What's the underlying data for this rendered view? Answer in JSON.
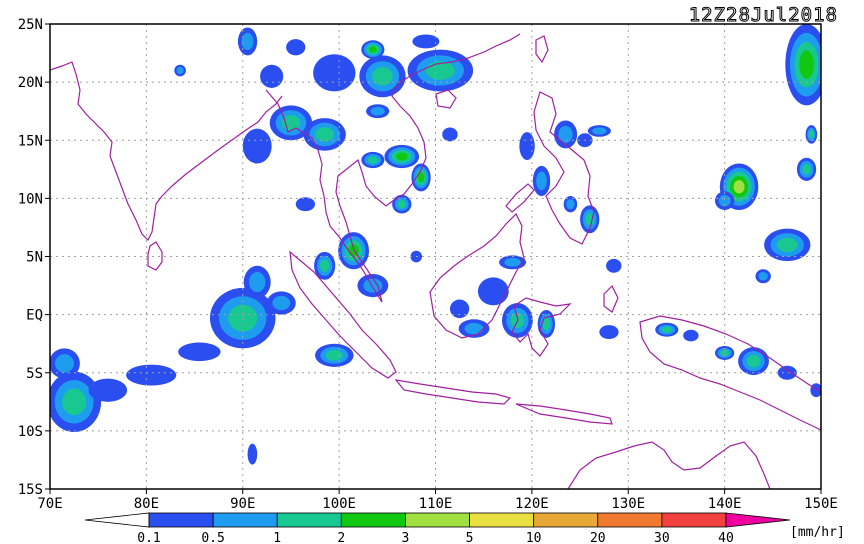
{
  "title": "12Z28Jul2018",
  "units": "[mm/hr]",
  "map": {
    "lon_range": [
      70,
      150
    ],
    "lat_range": [
      -15,
      25
    ],
    "lat_ticks": [
      {
        "value": 25,
        "label": "25N"
      },
      {
        "value": 20,
        "label": "20N"
      },
      {
        "value": 15,
        "label": "15N"
      },
      {
        "value": 10,
        "label": "10N"
      },
      {
        "value": 5,
        "label": "5N"
      },
      {
        "value": 0,
        "label": "EQ"
      },
      {
        "value": -5,
        "label": "5S"
      },
      {
        "value": -10,
        "label": "10S"
      },
      {
        "value": -15,
        "label": "15S"
      }
    ],
    "lon_ticks": [
      {
        "value": 70,
        "label": "70E"
      },
      {
        "value": 80,
        "label": "80E"
      },
      {
        "value": 90,
        "label": "90E"
      },
      {
        "value": 100,
        "label": "100E"
      },
      {
        "value": 110,
        "label": "110E"
      },
      {
        "value": 120,
        "label": "120E"
      },
      {
        "value": 130,
        "label": "130E"
      },
      {
        "value": 140,
        "label": "140E"
      },
      {
        "value": 150,
        "label": "150E"
      }
    ],
    "grid": true,
    "coastline_color": "#a020a0"
  },
  "colorbar": {
    "levels": [
      "0.1",
      "0.5",
      "1",
      "2",
      "3",
      "5",
      "10",
      "20",
      "30",
      "40"
    ],
    "colors": [
      "#ffffff",
      "#2a4ef0",
      "#1e9cf0",
      "#18c890",
      "#10c810",
      "#a0e040",
      "#e8e040",
      "#e8a838",
      "#f07830",
      "#f04040",
      "#f000a0"
    ]
  },
  "rain_cells": [
    {
      "lon": 72.5,
      "lat": -7.5,
      "rx": 2.8,
      "ry": 2.6,
      "max": 3
    },
    {
      "lon": 71.5,
      "lat": -4.2,
      "rx": 1.6,
      "ry": 1.3,
      "max": 2
    },
    {
      "lon": 76.0,
      "lat": -6.5,
      "rx": 2.0,
      "ry": 1.0,
      "max": 1
    },
    {
      "lon": 80.5,
      "lat": -5.2,
      "rx": 2.6,
      "ry": 0.9,
      "max": 1
    },
    {
      "lon": 85.5,
      "lat": -3.2,
      "rx": 2.2,
      "ry": 0.8,
      "max": 1
    },
    {
      "lon": 90.0,
      "lat": -0.3,
      "rx": 3.4,
      "ry": 2.6,
      "max": 3
    },
    {
      "lon": 91.5,
      "lat": 2.8,
      "rx": 1.4,
      "ry": 1.4,
      "max": 2
    },
    {
      "lon": 94.0,
      "lat": 1.0,
      "rx": 1.5,
      "ry": 1.0,
      "max": 2
    },
    {
      "lon": 99.5,
      "lat": -3.5,
      "rx": 2.0,
      "ry": 1.0,
      "max": 3
    },
    {
      "lon": 98.5,
      "lat": 4.2,
      "rx": 1.1,
      "ry": 1.2,
      "max": 3
    },
    {
      "lon": 101.5,
      "lat": 5.5,
      "rx": 1.6,
      "ry": 1.6,
      "max": 4
    },
    {
      "lon": 103.5,
      "lat": 2.5,
      "rx": 1.6,
      "ry": 1.0,
      "max": 2
    },
    {
      "lon": 96.5,
      "lat": 9.5,
      "rx": 1.0,
      "ry": 0.6,
      "max": 1
    },
    {
      "lon": 91.5,
      "lat": 14.5,
      "rx": 1.5,
      "ry": 1.5,
      "max": 1
    },
    {
      "lon": 95.0,
      "lat": 16.5,
      "rx": 2.2,
      "ry": 1.5,
      "max": 3
    },
    {
      "lon": 98.5,
      "lat": 15.5,
      "rx": 2.2,
      "ry": 1.4,
      "max": 3
    },
    {
      "lon": 93.0,
      "lat": 20.5,
      "rx": 1.2,
      "ry": 1.0,
      "max": 1
    },
    {
      "lon": 90.5,
      "lat": 23.5,
      "rx": 1.0,
      "ry": 1.2,
      "max": 2
    },
    {
      "lon": 95.5,
      "lat": 23.0,
      "rx": 1.0,
      "ry": 0.7,
      "max": 1
    },
    {
      "lon": 99.5,
      "lat": 20.8,
      "rx": 2.2,
      "ry": 1.6,
      "max": 1
    },
    {
      "lon": 104.5,
      "lat": 20.5,
      "rx": 2.4,
      "ry": 1.8,
      "max": 3
    },
    {
      "lon": 103.5,
      "lat": 22.8,
      "rx": 1.2,
      "ry": 0.8,
      "max": 4
    },
    {
      "lon": 110.5,
      "lat": 21.0,
      "rx": 3.4,
      "ry": 1.8,
      "max": 3
    },
    {
      "lon": 109.0,
      "lat": 23.5,
      "rx": 1.4,
      "ry": 0.6,
      "max": 1
    },
    {
      "lon": 106.5,
      "lat": 13.6,
      "rx": 1.8,
      "ry": 1.0,
      "max": 4
    },
    {
      "lon": 103.5,
      "lat": 13.3,
      "rx": 1.2,
      "ry": 0.7,
      "max": 3
    },
    {
      "lon": 108.5,
      "lat": 11.8,
      "rx": 1.0,
      "ry": 1.2,
      "max": 4
    },
    {
      "lon": 106.5,
      "lat": 9.5,
      "rx": 1.0,
      "ry": 0.8,
      "max": 3
    },
    {
      "lon": 104.0,
      "lat": 17.5,
      "rx": 1.2,
      "ry": 0.6,
      "max": 2
    },
    {
      "lon": 111.5,
      "lat": 15.5,
      "rx": 0.8,
      "ry": 0.6,
      "max": 1
    },
    {
      "lon": 119.5,
      "lat": 14.5,
      "rx": 0.8,
      "ry": 1.2,
      "max": 1
    },
    {
      "lon": 121.0,
      "lat": 11.5,
      "rx": 0.9,
      "ry": 1.3,
      "max": 2
    },
    {
      "lon": 123.5,
      "lat": 15.5,
      "rx": 1.2,
      "ry": 1.2,
      "max": 2
    },
    {
      "lon": 125.5,
      "lat": 15.0,
      "rx": 0.8,
      "ry": 0.6,
      "max": 1
    },
    {
      "lon": 127.0,
      "lat": 15.8,
      "rx": 1.2,
      "ry": 0.5,
      "max": 2
    },
    {
      "lon": 126.0,
      "lat": 8.2,
      "rx": 1.0,
      "ry": 1.2,
      "max": 3
    },
    {
      "lon": 124.0,
      "lat": 9.5,
      "rx": 0.7,
      "ry": 0.7,
      "max": 2
    },
    {
      "lon": 128.5,
      "lat": 4.2,
      "rx": 0.8,
      "ry": 0.6,
      "max": 1
    },
    {
      "lon": 118.0,
      "lat": 4.5,
      "rx": 1.4,
      "ry": 0.6,
      "max": 2
    },
    {
      "lon": 116.0,
      "lat": 2.0,
      "rx": 1.6,
      "ry": 1.2,
      "max": 1
    },
    {
      "lon": 118.5,
      "lat": -0.5,
      "rx": 1.6,
      "ry": 1.5,
      "max": 3
    },
    {
      "lon": 121.5,
      "lat": -0.8,
      "rx": 0.9,
      "ry": 1.2,
      "max": 3
    },
    {
      "lon": 114.0,
      "lat": -1.2,
      "rx": 1.6,
      "ry": 0.8,
      "max": 2
    },
    {
      "lon": 112.5,
      "lat": 0.5,
      "rx": 1.0,
      "ry": 0.8,
      "max": 1
    },
    {
      "lon": 128.0,
      "lat": -1.5,
      "rx": 1.0,
      "ry": 0.6,
      "max": 1
    },
    {
      "lon": 134.0,
      "lat": -1.3,
      "rx": 1.2,
      "ry": 0.6,
      "max": 3
    },
    {
      "lon": 136.5,
      "lat": -1.8,
      "rx": 0.8,
      "ry": 0.5,
      "max": 1
    },
    {
      "lon": 140.0,
      "lat": -3.3,
      "rx": 1.0,
      "ry": 0.6,
      "max": 3
    },
    {
      "lon": 143.0,
      "lat": -4.0,
      "rx": 1.6,
      "ry": 1.2,
      "max": 3
    },
    {
      "lon": 146.5,
      "lat": -5.0,
      "rx": 1.0,
      "ry": 0.6,
      "max": 1
    },
    {
      "lon": 149.5,
      "lat": -6.5,
      "rx": 0.6,
      "ry": 0.6,
      "max": 1
    },
    {
      "lon": 141.5,
      "lat": 11.0,
      "rx": 2.0,
      "ry": 2.0,
      "max": 5
    },
    {
      "lon": 146.5,
      "lat": 6.0,
      "rx": 2.4,
      "ry": 1.4,
      "max": 3
    },
    {
      "lon": 144.0,
      "lat": 3.3,
      "rx": 0.8,
      "ry": 0.6,
      "max": 2
    },
    {
      "lon": 148.5,
      "lat": 12.5,
      "rx": 1.0,
      "ry": 1.0,
      "max": 3
    },
    {
      "lon": 149.0,
      "lat": 15.5,
      "rx": 0.6,
      "ry": 0.8,
      "max": 3
    },
    {
      "lon": 148.5,
      "lat": 21.5,
      "rx": 2.2,
      "ry": 3.5,
      "max": 4
    },
    {
      "lon": 140.0,
      "lat": 9.8,
      "rx": 1.0,
      "ry": 0.8,
      "max": 2
    },
    {
      "lon": 91.0,
      "lat": -12.0,
      "rx": 0.5,
      "ry": 0.9,
      "max": 1
    },
    {
      "lon": 83.5,
      "lat": 21.0,
      "rx": 0.6,
      "ry": 0.5,
      "max": 2
    },
    {
      "lon": 108.0,
      "lat": 5.0,
      "rx": 0.6,
      "ry": 0.5,
      "max": 1
    }
  ]
}
